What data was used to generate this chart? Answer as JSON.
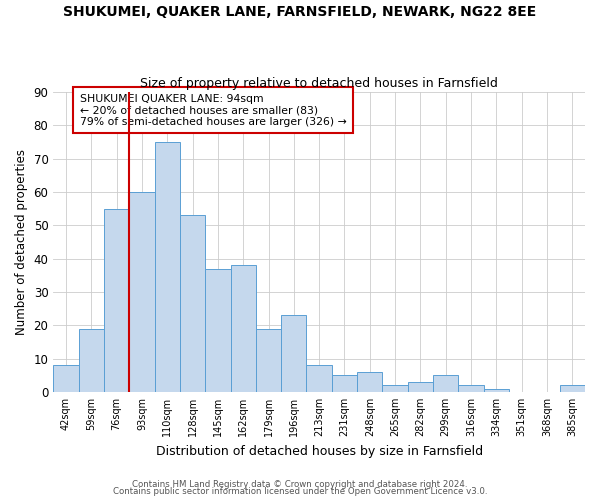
{
  "title": "SHUKUMEI, QUAKER LANE, FARNSFIELD, NEWARK, NG22 8EE",
  "subtitle": "Size of property relative to detached houses in Farnsfield",
  "xlabel": "Distribution of detached houses by size in Farnsfield",
  "ylabel": "Number of detached properties",
  "bar_labels": [
    "42sqm",
    "59sqm",
    "76sqm",
    "93sqm",
    "110sqm",
    "128sqm",
    "145sqm",
    "162sqm",
    "179sqm",
    "196sqm",
    "213sqm",
    "231sqm",
    "248sqm",
    "265sqm",
    "282sqm",
    "299sqm",
    "316sqm",
    "334sqm",
    "351sqm",
    "368sqm",
    "385sqm"
  ],
  "bar_values": [
    8,
    19,
    55,
    60,
    75,
    53,
    37,
    38,
    19,
    23,
    8,
    5,
    6,
    2,
    3,
    5,
    2,
    1,
    0,
    0,
    2
  ],
  "bar_color": "#c5d8ed",
  "bar_edge_color": "#5a9fd4",
  "vline_color": "#cc0000",
  "vline_bar_index": 3,
  "annotation_box_text": "SHUKUMEI QUAKER LANE: 94sqm\n← 20% of detached houses are smaller (83)\n79% of semi-detached houses are larger (326) →",
  "ylim": [
    0,
    90
  ],
  "yticks": [
    0,
    10,
    20,
    30,
    40,
    50,
    60,
    70,
    80,
    90
  ],
  "footer_line1": "Contains HM Land Registry data © Crown copyright and database right 2024.",
  "footer_line2": "Contains public sector information licensed under the Open Government Licence v3.0.",
  "background_color": "#ffffff",
  "grid_color": "#cccccc",
  "title_fontsize": 10,
  "subtitle_fontsize": 9,
  "ylabel_fontsize": 8.5,
  "xlabel_fontsize": 9
}
